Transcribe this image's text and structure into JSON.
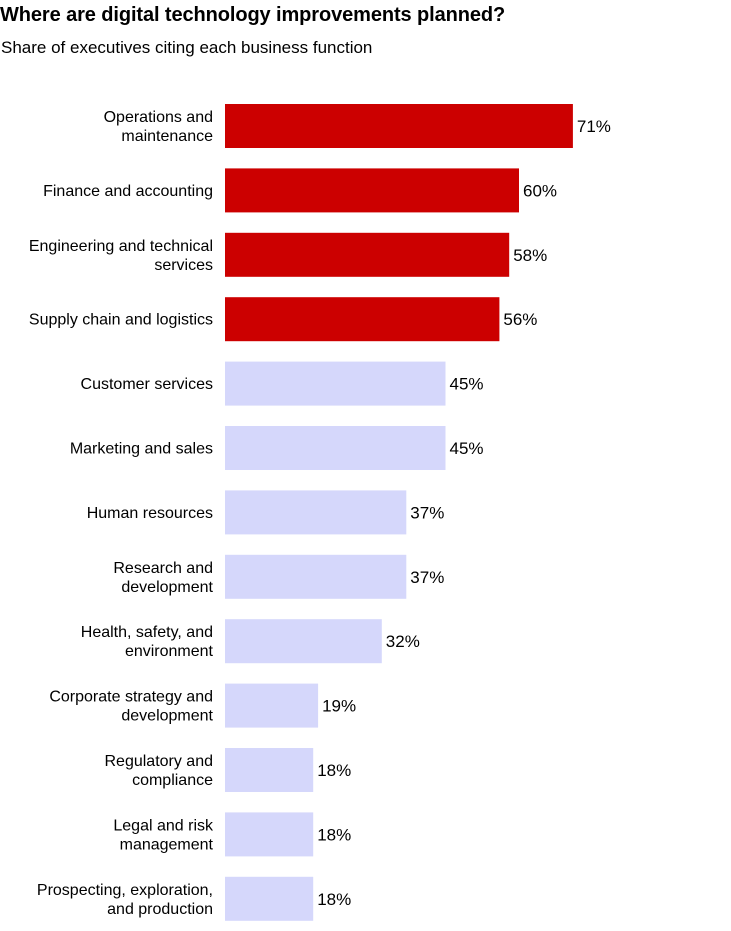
{
  "title": "Where are digital technology improvements planned?",
  "subtitle": "Share of executives citing each business function",
  "colors": {
    "highlight": "#cc0000",
    "base": "#d5d7fb",
    "text": "#000000"
  },
  "chart_data": {
    "type": "bar",
    "orientation": "horizontal",
    "title": "Where are digital technology improvements planned?",
    "subtitle": "Share of executives citing each business function",
    "unit": "%",
    "xlim": [
      0,
      100
    ],
    "grid": false,
    "categories": [
      "Operations and maintenance",
      "Finance and accounting",
      "Engineering and technical services",
      "Supply chain and logistics",
      "Customer services",
      "Marketing and sales",
      "Human resources",
      "Research and development",
      "Health, safety, and environment",
      "Corporate strategy and development",
      "Regulatory and compliance",
      "Legal and risk management",
      "Prospecting, exploration, and production"
    ],
    "label_lines": [
      [
        "Operations and",
        "maintenance"
      ],
      [
        "Finance and accounting"
      ],
      [
        "Engineering and technical",
        "services"
      ],
      [
        "Supply chain and logistics"
      ],
      [
        "Customer services"
      ],
      [
        "Marketing and sales"
      ],
      [
        "Human resources"
      ],
      [
        "Research and",
        "development"
      ],
      [
        "Health, safety, and",
        "environment"
      ],
      [
        "Corporate strategy and",
        "development"
      ],
      [
        "Regulatory and",
        "compliance"
      ],
      [
        "Legal and risk",
        "management"
      ],
      [
        "Prospecting, exploration,",
        "and production"
      ]
    ],
    "values": [
      71,
      60,
      58,
      56,
      45,
      45,
      37,
      37,
      32,
      19,
      18,
      18,
      18
    ],
    "value_labels": [
      "71%",
      "60%",
      "58%",
      "56%",
      "45%",
      "45%",
      "37%",
      "37%",
      "32%",
      "19%",
      "18%",
      "18%",
      "18%"
    ],
    "highlighted": [
      true,
      true,
      true,
      true,
      false,
      false,
      false,
      false,
      false,
      false,
      false,
      false,
      false
    ]
  }
}
